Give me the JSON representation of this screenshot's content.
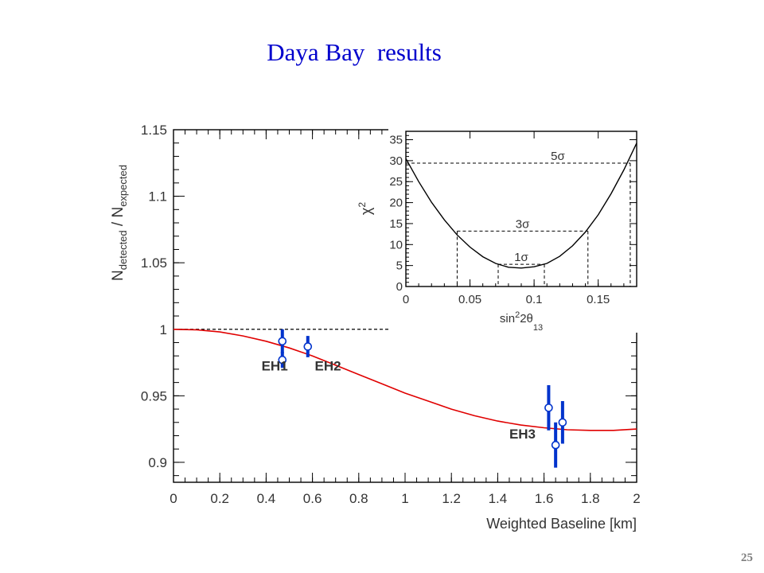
{
  "slide": {
    "title": "Daya Bay  results",
    "page_number": "25"
  },
  "chart_data": [
    {
      "type": "scatter",
      "xlabel": "Weighted Baseline [km]",
      "ylabel": "N_detected / N_expected",
      "xlim": [
        0,
        2
      ],
      "ylim": [
        0.885,
        1.15
      ],
      "x_ticks": [
        "0",
        "0.2",
        "0.4",
        "0.6",
        "0.8",
        "1",
        "1.2",
        "1.4",
        "1.6",
        "1.8",
        "2"
      ],
      "y_ticks": [
        "0.9",
        "0.95",
        "1",
        "1.05",
        "1.1",
        "1.15"
      ],
      "reference_line": {
        "y": 1.0,
        "style": "dashed"
      },
      "fit_curve": {
        "color": "#e00000",
        "x": [
          0,
          0.1,
          0.2,
          0.3,
          0.4,
          0.5,
          0.6,
          0.7,
          0.8,
          0.9,
          1.0,
          1.1,
          1.2,
          1.3,
          1.4,
          1.5,
          1.6,
          1.7,
          1.8,
          1.9,
          2.0
        ],
        "y": [
          1.0,
          0.9996,
          0.998,
          0.995,
          0.991,
          0.986,
          0.98,
          0.973,
          0.966,
          0.959,
          0.952,
          0.946,
          0.94,
          0.935,
          0.931,
          0.928,
          0.926,
          0.9245,
          0.924,
          0.924,
          0.925
        ]
      },
      "points": [
        {
          "x": 0.47,
          "y": 0.991,
          "err": 0.009
        },
        {
          "x": 0.47,
          "y": 0.977,
          "err": 0.006
        },
        {
          "x": 0.58,
          "y": 0.987,
          "err": 0.008
        },
        {
          "x": 1.62,
          "y": 0.941,
          "err": 0.017
        },
        {
          "x": 1.65,
          "y": 0.913,
          "err": 0.017
        },
        {
          "x": 1.68,
          "y": 0.93,
          "err": 0.016
        }
      ],
      "point_color": "#0033cc",
      "labels": [
        {
          "text": "EH1",
          "x": 0.38,
          "y": 0.969
        },
        {
          "text": "EH2",
          "x": 0.61,
          "y": 0.969
        },
        {
          "text": "EH3",
          "x": 1.45,
          "y": 0.918
        }
      ]
    },
    {
      "type": "line",
      "xlabel": "sin²2θ₁₃",
      "ylabel": "χ²",
      "xlim": [
        0,
        0.18
      ],
      "ylim": [
        0,
        37
      ],
      "x_ticks": [
        "0",
        "0.05",
        "0.1",
        "0.15"
      ],
      "y_ticks": [
        "0",
        "5",
        "10",
        "15",
        "20",
        "25",
        "30",
        "35"
      ],
      "curve": {
        "x": [
          0,
          0.01,
          0.02,
          0.03,
          0.04,
          0.05,
          0.06,
          0.07,
          0.08,
          0.09,
          0.1,
          0.11,
          0.12,
          0.13,
          0.14,
          0.15,
          0.16,
          0.17,
          0.18
        ],
        "y": [
          30.5,
          25.0,
          20.1,
          15.9,
          12.3,
          9.4,
          7.1,
          5.5,
          4.6,
          4.4,
          4.7,
          5.5,
          7.2,
          9.7,
          13.0,
          17.1,
          22.1,
          27.8,
          34.2
        ]
      },
      "levels": [
        {
          "label": "5σ",
          "y": 29.4,
          "x_left": 0.0,
          "x_right": 0.175
        },
        {
          "label": "3σ",
          "y": 13.2,
          "x_left": 0.04,
          "x_right": 0.142
        },
        {
          "label": "1σ",
          "y": 5.3,
          "x_left": 0.072,
          "x_right": 0.108
        }
      ]
    }
  ]
}
